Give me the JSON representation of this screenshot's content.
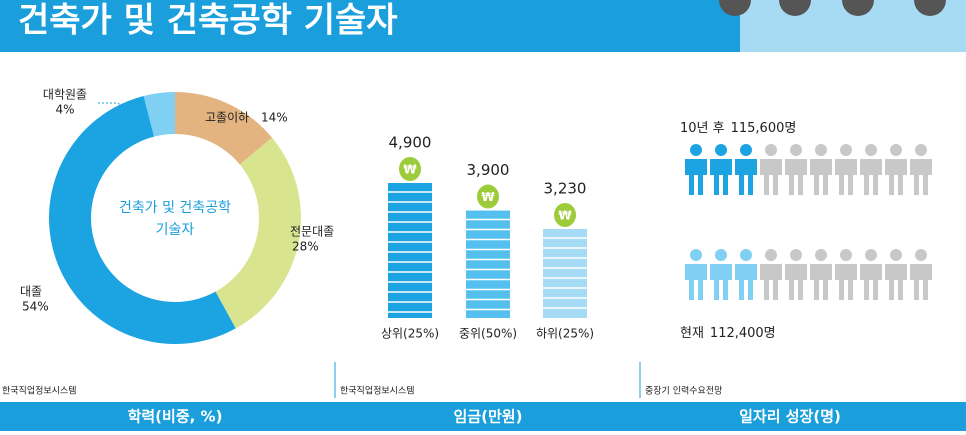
{
  "title": "건축가 및 건축공학 기술자",
  "chart_data": [
    {
      "type": "pie",
      "title": "학력(비중, %)",
      "source": "한국직업정보시스템",
      "center_label": [
        "건축가 및 건축공학",
        "기술자"
      ],
      "categories": [
        "고졸이하",
        "전문대졸",
        "대졸",
        "대학원졸"
      ],
      "values": [
        14,
        28,
        54,
        4
      ],
      "value_labels": [
        "14%",
        "28%",
        "54%",
        "4%"
      ],
      "colors": [
        "#e3b380",
        "#d9e48f",
        "#1ba3e2",
        "#7fd0f2"
      ]
    },
    {
      "type": "bar",
      "title": "임금(만원)",
      "source": "한국직업정보시스템",
      "categories": [
        "상위(25%)",
        "중위(50%)",
        "하위(25%)"
      ],
      "values": [
        4900,
        3900,
        3230
      ],
      "value_labels": [
        "4,900",
        "3,900",
        "3,230"
      ],
      "colors": [
        "#1ba3e2",
        "#55bff0",
        "#a5dbf5"
      ]
    },
    {
      "type": "pictogram",
      "title": "일자리 성장(명)",
      "source": "중장기 인력수요전망",
      "categories": [
        "10년 후",
        "현재"
      ],
      "values": [
        115600,
        112400
      ],
      "value_labels": [
        "115,600명",
        "112,400명"
      ],
      "colors": [
        "#1ba3e2",
        "#7fd0f2"
      ]
    }
  ]
}
